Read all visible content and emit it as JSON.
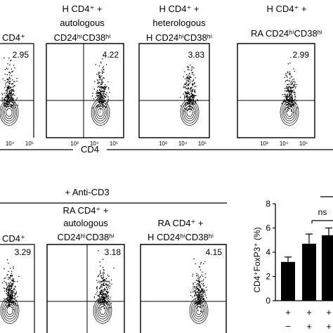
{
  "top_row": {
    "panel_titles": [
      {
        "lines": [
          "",
          "CD4⁺"
        ]
      },
      {
        "lines": [
          "H CD4⁺ +",
          "autologous",
          "CD24ʰⁱCD38ʰⁱ"
        ]
      },
      {
        "lines": [
          "H CD4⁺ +",
          "heterologous",
          "H CD24ʰⁱCD38ʰⁱ"
        ]
      },
      {
        "lines": [
          "H CD4⁺ +",
          "RA CD24ʰⁱCD38ʰⁱ"
        ]
      }
    ],
    "percentages": [
      "2.95",
      "4.22",
      "3.83",
      "2.99"
    ],
    "x_tick_labels": [
      "10³",
      "10⁴",
      "10⁵"
    ],
    "x_axis_label": "CD4"
  },
  "bottom_row": {
    "header": "+ Anti-CD3",
    "panel_titles": [
      {
        "lines": [
          "",
          "CD4⁺"
        ]
      },
      {
        "lines": [
          "RA CD4⁺ +",
          "autologous",
          "CD24ʰⁱCD38ʰⁱ"
        ]
      },
      {
        "lines": [
          "RA CD4⁺ +",
          "H CD24ʰⁱCD38ʰⁱ"
        ]
      }
    ],
    "percentages": [
      "3.29",
      "3.18",
      "4.15"
    ]
  },
  "bar_chart": {
    "y_axis_label": "CD4⁺FoxP3⁺ (%)",
    "significance": "ns",
    "row_symbols": [
      [
        "+",
        "+",
        "+"
      ],
      [
        "−",
        "+",
        "+"
      ]
    ],
    "chart_data": {
      "type": "bar",
      "ylabel": "CD4⁺FoxP3⁺ (%)",
      "ylim": [
        0,
        8
      ],
      "yticks": [
        0,
        2,
        4,
        6,
        8
      ],
      "values": [
        3.2,
        4.7,
        5.4
      ],
      "errors": [
        0.4,
        0.8,
        0.6
      ],
      "bar_color": "#000000",
      "grid": false
    }
  }
}
